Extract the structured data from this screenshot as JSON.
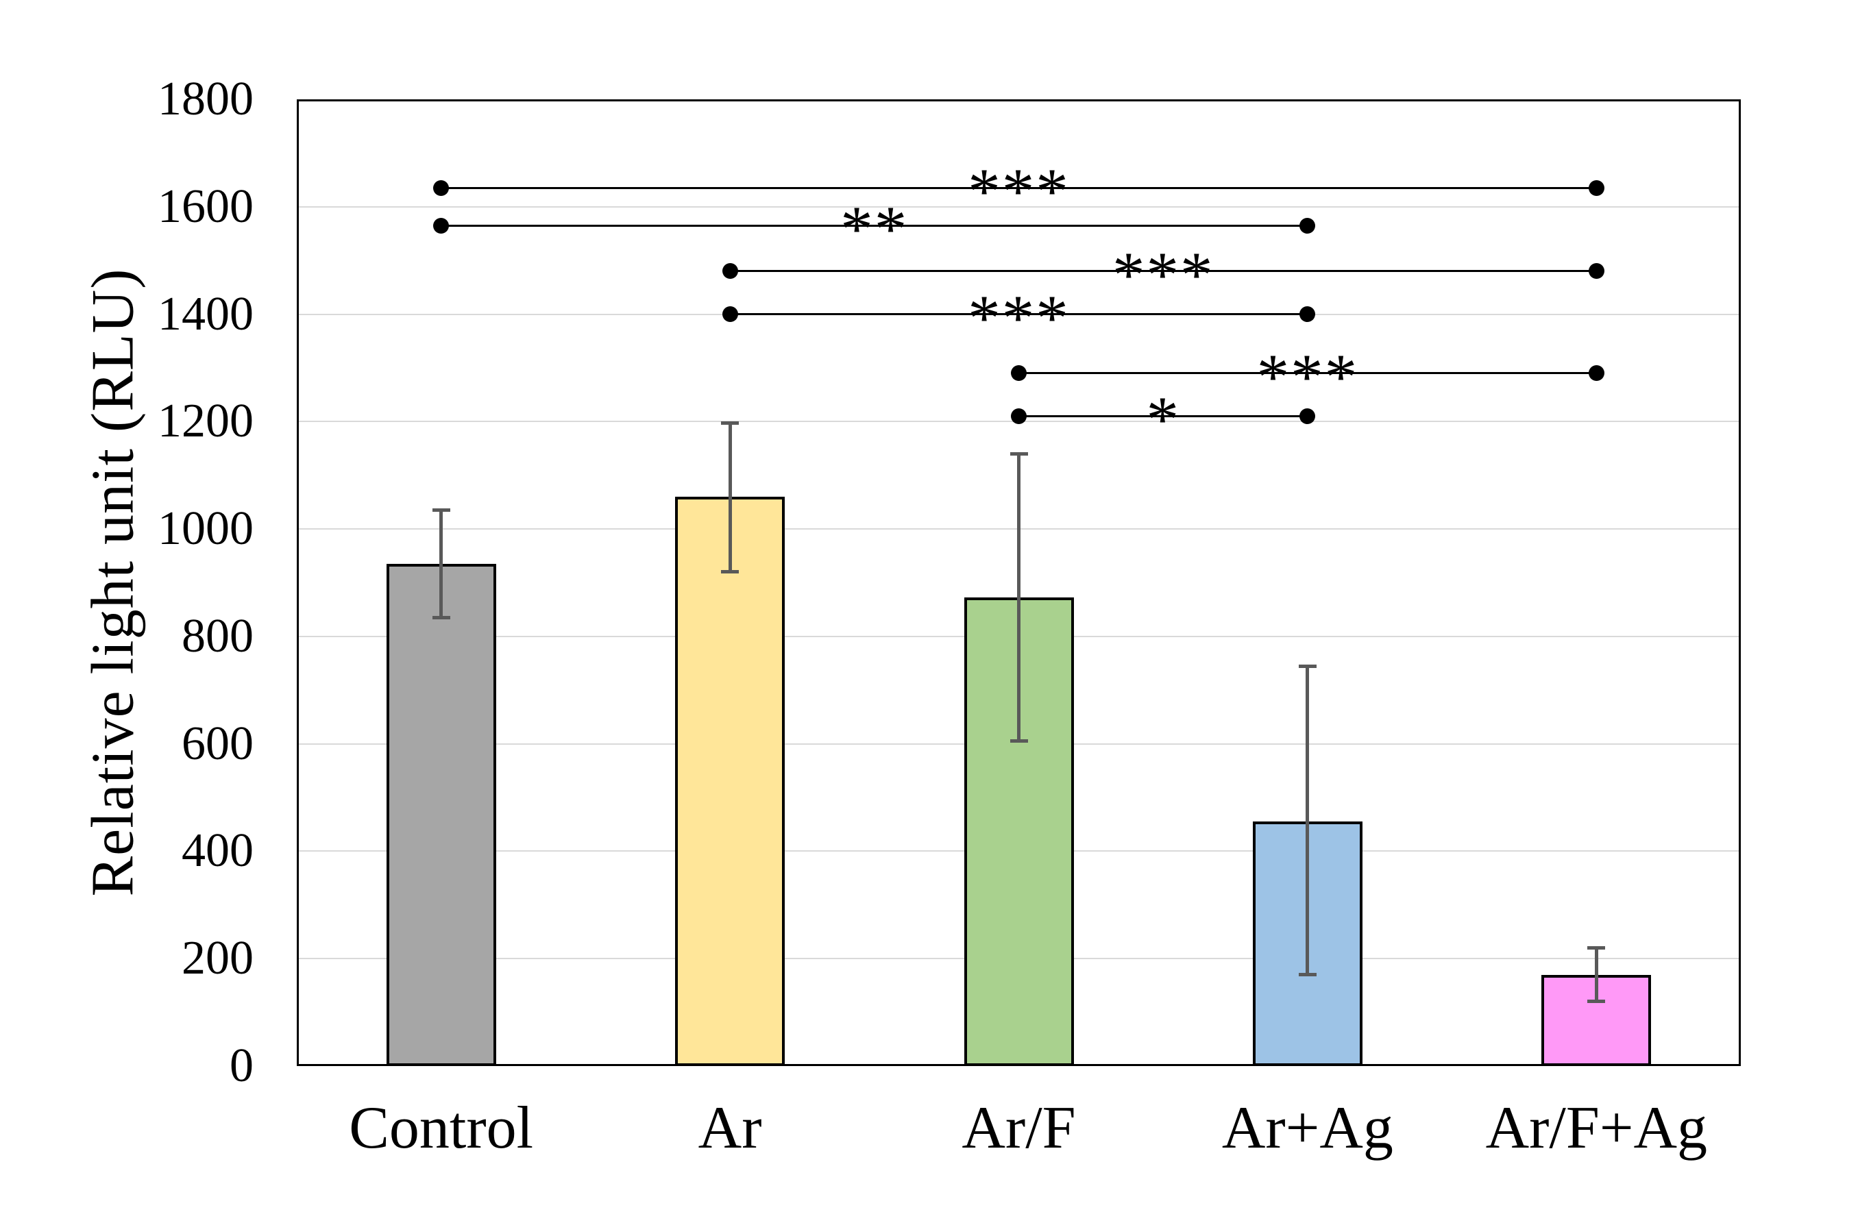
{
  "chart_data": {
    "type": "bar",
    "title": "",
    "xlabel": "",
    "ylabel": "Relative light unit (RLU)",
    "ylim": [
      0,
      1800
    ],
    "yticks": [
      0,
      200,
      400,
      600,
      800,
      1000,
      1200,
      1400,
      1600,
      1800
    ],
    "grid": true,
    "legend": "none",
    "categories": [
      "Control",
      "Ar",
      "Ar/F",
      "Ar+Ag",
      "Ar/F+Ag"
    ],
    "values": [
      935,
      1060,
      872,
      455,
      170
    ],
    "error_low": [
      835,
      920,
      605,
      170,
      120
    ],
    "error_high": [
      1035,
      1197,
      1140,
      744,
      220
    ],
    "bar_colors": [
      "#A6A6A6",
      "#FFE699",
      "#A9D18E",
      "#9DC3E6",
      "#FF99F7"
    ],
    "significance_brackets": [
      {
        "from": "Control",
        "to": "Ar/F+Ag",
        "label": "***",
        "y": 1635
      },
      {
        "from": "Control",
        "to": "Ar+Ag",
        "label": "**",
        "y": 1565
      },
      {
        "from": "Ar",
        "to": "Ar/F+Ag",
        "label": "***",
        "y": 1480
      },
      {
        "from": "Ar",
        "to": "Ar+Ag",
        "label": "***",
        "y": 1400
      },
      {
        "from": "Ar/F",
        "to": "Ar/F+Ag",
        "label": "***",
        "y": 1290
      },
      {
        "from": "Ar/F",
        "to": "Ar+Ag",
        "label": "*",
        "y": 1210
      }
    ],
    "colors": {
      "background": "#FFFFFF",
      "axis": "#000000",
      "gridline": "#D9D9D9",
      "error_bar": "#595959",
      "bar_border": "#000000",
      "significance": "#000000",
      "text": "#000000"
    }
  }
}
